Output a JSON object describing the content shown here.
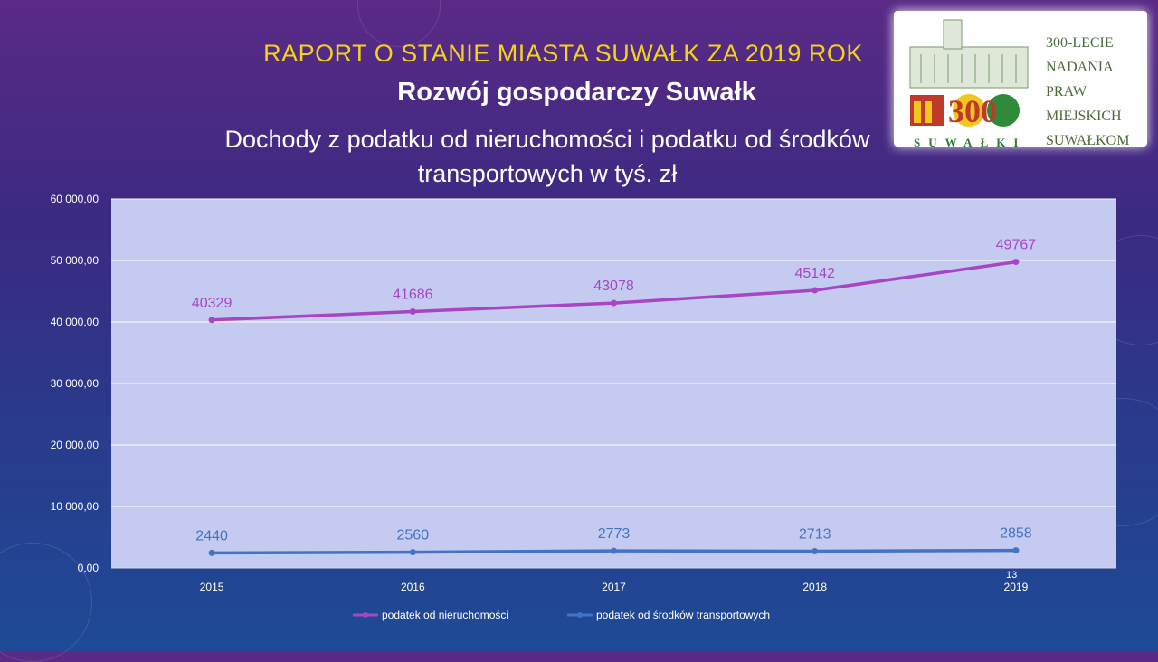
{
  "header": {
    "title": "RAPORT O STANIE MIASTA SUWAŁK ZA 2019 ROK",
    "subtitle": "Rozwój gospodarczy Suwałk"
  },
  "logo": {
    "lines": [
      "300-LECIE",
      "NADANIA",
      "PRAW",
      "MIEJSKICH",
      "SUWAŁKOM"
    ],
    "emblem_text": "300",
    "city_text": "SUWAŁKI"
  },
  "page_number": "13",
  "colors": {
    "series1": "#a646c4",
    "series2": "#4472c4",
    "plot_bg": "#c5caf1",
    "title_yellow": "#f2d21c"
  },
  "chart_data": {
    "type": "line",
    "title": "Dochody z podatku od nieruchomości i podatku od środków transportowych w tyś. zł",
    "title_lines": [
      "Dochody z podatku od nieruchomości i podatku od środków",
      "transportowych w tyś. zł"
    ],
    "categories": [
      "2015",
      "2016",
      "2017",
      "2018",
      "2019"
    ],
    "series": [
      {
        "name": "podatek od nieruchomości",
        "values": [
          40329,
          41686,
          43078,
          45142,
          49767
        ]
      },
      {
        "name": "podatek od środków transportowych",
        "values": [
          2440,
          2560,
          2773,
          2713,
          2858
        ]
      }
    ],
    "ylim": [
      0,
      60000
    ],
    "yticks": [
      0,
      10000,
      20000,
      30000,
      40000,
      50000,
      60000
    ],
    "ytick_labels": [
      "0,00",
      "10 000,00",
      "20 000,00",
      "30 000,00",
      "40 000,00",
      "50 000,00",
      "60 000,00"
    ],
    "grid": true,
    "legend": "bottom"
  }
}
